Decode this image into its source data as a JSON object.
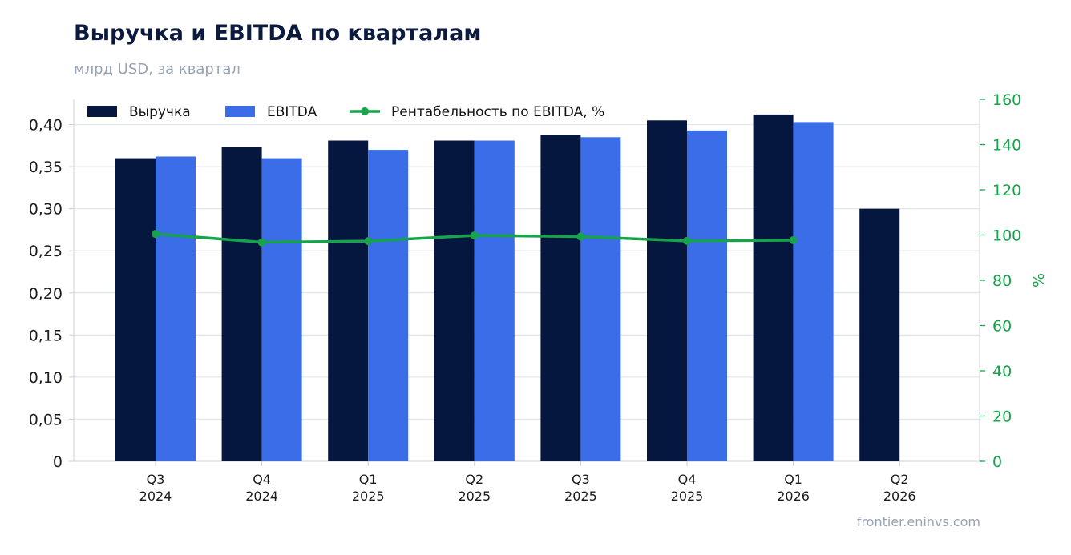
{
  "title": "Выручка и EBITDA по кварталам",
  "subtitle": "млрд USD, за квартал",
  "source": "frontier.eninvs.com",
  "colors": {
    "revenue": "#06173f",
    "ebitda": "#3b6de8",
    "margin": "#16a34a",
    "grid": "#e3e7ee"
  },
  "chart_data": {
    "type": "bar",
    "categories": [
      [
        "Q3",
        "2024"
      ],
      [
        "Q4",
        "2024"
      ],
      [
        "Q1",
        "2025"
      ],
      [
        "Q2",
        "2025"
      ],
      [
        "Q3",
        "2025"
      ],
      [
        "Q4",
        "2025"
      ],
      [
        "Q1",
        "2026"
      ],
      [
        "Q2",
        "2026"
      ]
    ],
    "series": [
      {
        "name": "Выручка",
        "axis": "left",
        "values": [
          0.36,
          0.373,
          0.381,
          0.381,
          0.388,
          0.405,
          0.412,
          0.3
        ]
      },
      {
        "name": "EBITDA",
        "axis": "left",
        "values": [
          0.362,
          0.36,
          0.37,
          0.381,
          0.385,
          0.393,
          0.403,
          null
        ]
      },
      {
        "name": "Рентабельность по EBITDA, %",
        "type": "line",
        "axis": "right",
        "values": [
          100.5,
          96.8,
          97.3,
          99.8,
          99.3,
          97.4,
          97.7,
          null
        ]
      }
    ],
    "ylim": [
      0,
      0.43
    ],
    "yticks": [
      "0",
      "0,05",
      "0,10",
      "0,15",
      "0,20",
      "0,25",
      "0,30",
      "0,35",
      "0,40"
    ],
    "ylim_right": [
      0,
      160
    ],
    "yticks_right": [
      "0",
      "20",
      "40",
      "60",
      "80",
      "100",
      "120",
      "140",
      "160"
    ],
    "ylabel_right": "%",
    "grid": true,
    "legend_position": "top-left"
  }
}
